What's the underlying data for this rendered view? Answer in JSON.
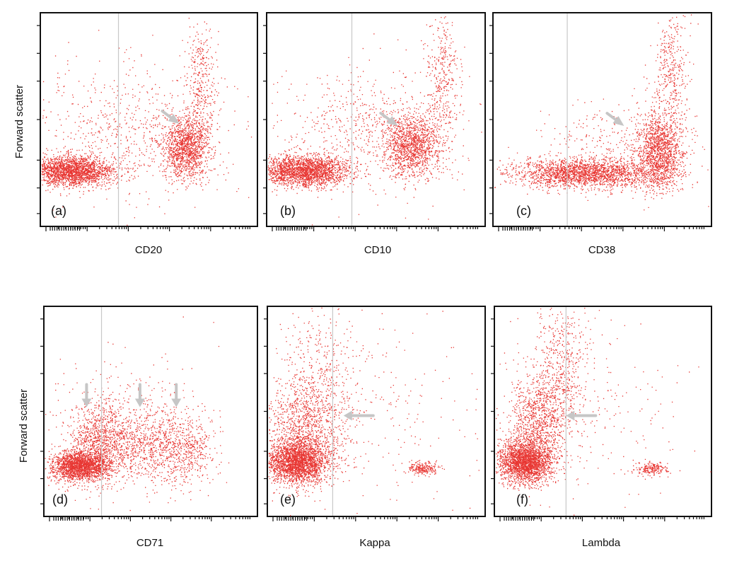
{
  "colors": {
    "dots": "#e4140f",
    "gate": "#c8c8c8",
    "arrow": "#c6c6c6",
    "frame": "#111111"
  },
  "chart_data": [
    {
      "type": "scatter",
      "panel_label": "(a)",
      "xlabel": "CD20",
      "ylabel": "Forward scatter",
      "xscale": "log",
      "xlim": [
        0,
        1
      ],
      "ylim": [
        0,
        1
      ],
      "gate_x": 0.36,
      "clusters": [
        {
          "x": 0.14,
          "y": 0.26,
          "sx": 0.1,
          "sy": 0.035,
          "n": 2200
        },
        {
          "x": 0.67,
          "y": 0.37,
          "sx": 0.05,
          "sy": 0.07,
          "n": 1300
        },
        {
          "x": 0.74,
          "y": 0.68,
          "sx": 0.035,
          "sy": 0.14,
          "n": 350
        },
        {
          "x": 0.42,
          "y": 0.45,
          "sx": 0.23,
          "sy": 0.15,
          "n": 700
        }
      ],
      "arrows": [
        {
          "x": 0.64,
          "y": 0.48,
          "dir": "down-right"
        }
      ]
    },
    {
      "type": "scatter",
      "panel_label": "(b)",
      "xlabel": "CD10",
      "ylabel": "",
      "xscale": "log",
      "xlim": [
        0,
        1
      ],
      "ylim": [
        0,
        1
      ],
      "gate_x": 0.39,
      "clusters": [
        {
          "x": 0.17,
          "y": 0.26,
          "sx": 0.1,
          "sy": 0.035,
          "n": 2200
        },
        {
          "x": 0.66,
          "y": 0.38,
          "sx": 0.065,
          "sy": 0.07,
          "n": 1300
        },
        {
          "x": 0.8,
          "y": 0.7,
          "sx": 0.04,
          "sy": 0.15,
          "n": 350
        },
        {
          "x": 0.45,
          "y": 0.45,
          "sx": 0.22,
          "sy": 0.15,
          "n": 650
        }
      ],
      "arrows": [
        {
          "x": 0.6,
          "y": 0.47,
          "dir": "down-right"
        }
      ]
    },
    {
      "type": "scatter",
      "panel_label": "(c)",
      "xlabel": "CD38",
      "ylabel": "",
      "xscale": "log",
      "xlim": [
        0,
        1
      ],
      "ylim": [
        0,
        1
      ],
      "gate_x": 0.34,
      "clusters": [
        {
          "x": 0.42,
          "y": 0.25,
          "sx": 0.17,
          "sy": 0.035,
          "n": 2200
        },
        {
          "x": 0.76,
          "y": 0.35,
          "sx": 0.05,
          "sy": 0.085,
          "n": 1300
        },
        {
          "x": 0.81,
          "y": 0.7,
          "sx": 0.04,
          "sy": 0.15,
          "n": 400
        },
        {
          "x": 0.6,
          "y": 0.38,
          "sx": 0.18,
          "sy": 0.1,
          "n": 350
        }
      ],
      "arrows": [
        {
          "x": 0.6,
          "y": 0.47,
          "dir": "down-right"
        }
      ]
    },
    {
      "type": "scatter",
      "panel_label": "(d)",
      "xlabel": "CD71",
      "ylabel": "Forward scatter",
      "xscale": "log",
      "xlim": [
        0,
        1
      ],
      "ylim": [
        0,
        1
      ],
      "gate_x": 0.27,
      "clusters": [
        {
          "x": 0.16,
          "y": 0.24,
          "sx": 0.065,
          "sy": 0.035,
          "n": 1900
        },
        {
          "x": 0.25,
          "y": 0.34,
          "sx": 0.06,
          "sy": 0.1,
          "n": 900
        },
        {
          "x": 0.46,
          "y": 0.34,
          "sx": 0.12,
          "sy": 0.09,
          "n": 900
        },
        {
          "x": 0.66,
          "y": 0.32,
          "sx": 0.08,
          "sy": 0.08,
          "n": 450
        },
        {
          "x": 0.35,
          "y": 0.5,
          "sx": 0.2,
          "sy": 0.15,
          "n": 250
        }
      ],
      "arrows": [
        {
          "x": 0.2,
          "y": 0.52,
          "dir": "down"
        },
        {
          "x": 0.45,
          "y": 0.52,
          "dir": "down"
        },
        {
          "x": 0.62,
          "y": 0.52,
          "dir": "down"
        }
      ]
    },
    {
      "type": "scatter",
      "panel_label": "(e)",
      "xlabel": "Kappa",
      "ylabel": "",
      "xscale": "log",
      "xlim": [
        0,
        1
      ],
      "ylim": [
        0,
        1
      ],
      "gate_x": 0.3,
      "clusters": [
        {
          "x": 0.14,
          "y": 0.26,
          "sx": 0.07,
          "sy": 0.05,
          "n": 2400
        },
        {
          "x": 0.16,
          "y": 0.42,
          "sx": 0.09,
          "sy": 0.11,
          "n": 1000
        },
        {
          "x": 0.24,
          "y": 0.65,
          "sx": 0.1,
          "sy": 0.17,
          "n": 450
        },
        {
          "x": 0.71,
          "y": 0.23,
          "sx": 0.035,
          "sy": 0.015,
          "n": 220
        },
        {
          "x": 0.48,
          "y": 0.5,
          "sx": 0.26,
          "sy": 0.25,
          "n": 250
        }
      ],
      "arrows": [
        {
          "x": 0.35,
          "y": 0.48,
          "dir": "left"
        }
      ]
    },
    {
      "type": "scatter",
      "panel_label": "(f)",
      "xlabel": "Lambda",
      "ylabel": "",
      "xscale": "log",
      "xlim": [
        0,
        1
      ],
      "ylim": [
        0,
        1
      ],
      "gate_x": 0.33,
      "clusters": [
        {
          "x": 0.14,
          "y": 0.26,
          "sx": 0.06,
          "sy": 0.05,
          "n": 2300
        },
        {
          "x": 0.2,
          "y": 0.46,
          "sx": 0.07,
          "sy": 0.12,
          "n": 1000
        },
        {
          "x": 0.31,
          "y": 0.72,
          "sx": 0.06,
          "sy": 0.17,
          "n": 500
        },
        {
          "x": 0.72,
          "y": 0.23,
          "sx": 0.035,
          "sy": 0.015,
          "n": 200
        },
        {
          "x": 0.5,
          "y": 0.5,
          "sx": 0.26,
          "sy": 0.25,
          "n": 200
        }
      ],
      "arrows": [
        {
          "x": 0.33,
          "y": 0.48,
          "dir": "left"
        }
      ]
    }
  ]
}
